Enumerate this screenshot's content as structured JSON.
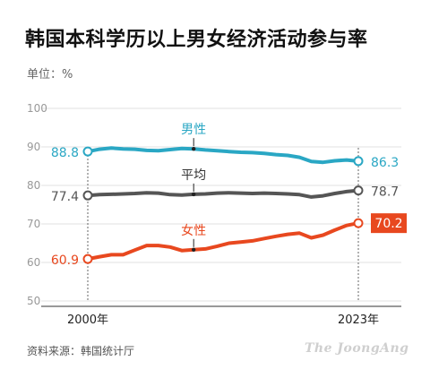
{
  "chart_data": {
    "type": "line",
    "title": "韩国本科学历以上男女经济活动参与率",
    "unit_label": "单位：%",
    "source": "资料来源：韩国统计厅",
    "watermark": "The JoongAng",
    "x": [
      2000,
      2001,
      2002,
      2003,
      2004,
      2005,
      2006,
      2007,
      2008,
      2009,
      2010,
      2011,
      2012,
      2013,
      2014,
      2015,
      2016,
      2017,
      2018,
      2019,
      2020,
      2021,
      2022,
      2023
    ],
    "x_tick_labels": [
      "2000年",
      "2023年"
    ],
    "ylim": [
      50,
      100
    ],
    "y_ticks": [
      50,
      60,
      70,
      80,
      90,
      100
    ],
    "grid": true,
    "series": [
      {
        "name": "男性",
        "color": "#2aa7c4",
        "values": [
          88.8,
          89.4,
          89.7,
          89.5,
          89.4,
          89.1,
          89.0,
          89.3,
          89.6,
          89.5,
          89.2,
          89.0,
          88.8,
          88.6,
          88.5,
          88.3,
          88.0,
          87.8,
          87.3,
          86.2,
          86.0,
          86.4,
          86.6,
          86.3
        ],
        "start_label": "88.8",
        "end_label": "86.3"
      },
      {
        "name": "平均",
        "color": "#555555",
        "values": [
          77.4,
          77.6,
          77.7,
          77.8,
          77.9,
          78.1,
          78.0,
          77.6,
          77.5,
          77.7,
          77.8,
          78.0,
          78.1,
          78.0,
          77.9,
          78.0,
          77.9,
          77.8,
          77.6,
          77.0,
          77.3,
          77.9,
          78.4,
          78.7
        ],
        "start_label": "77.4",
        "end_label": "78.7"
      },
      {
        "name": "女性",
        "color": "#e8481f",
        "values": [
          60.9,
          61.5,
          62.0,
          62.0,
          63.2,
          64.4,
          64.4,
          64.0,
          63.1,
          63.3,
          63.5,
          64.2,
          65.0,
          65.3,
          65.6,
          66.2,
          66.8,
          67.3,
          67.6,
          66.4,
          67.1,
          68.4,
          69.6,
          70.2
        ],
        "start_label": "60.9",
        "end_label": "70.2"
      }
    ],
    "annotations": [
      {
        "series": "男性",
        "text": "男性",
        "x": 2009
      },
      {
        "series": "平均",
        "text": "平均",
        "x": 2009
      },
      {
        "series": "女性",
        "text": "女性",
        "x": 2009
      }
    ]
  }
}
